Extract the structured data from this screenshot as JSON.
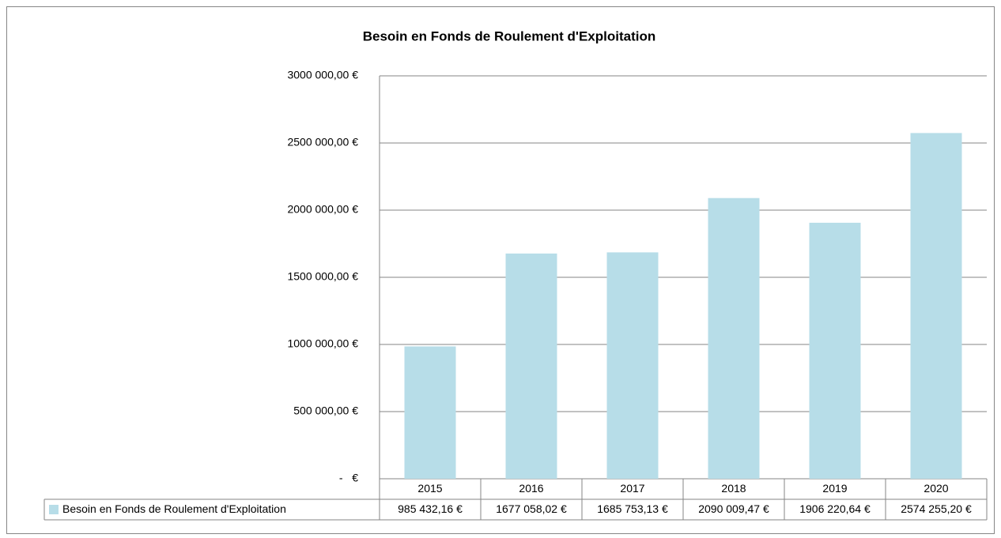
{
  "chart_data": {
    "type": "bar",
    "title": "Besoin en Fonds de Roulement d'Exploitation",
    "categories": [
      "2015",
      "2016",
      "2017",
      "2018",
      "2019",
      "2020"
    ],
    "series": [
      {
        "name": "Besoin en Fonds de Roulement d'Exploitation",
        "color": "#b7dde8",
        "values": [
          985432.16,
          1677058.02,
          1685753.13,
          2090009.47,
          1906220.64,
          2574255.2
        ],
        "value_labels": [
          "985 432,16 €",
          "1677 058,02 €",
          "1685 753,13 €",
          "2090 009,47 €",
          "1906 220,64 €",
          "2574 255,20 €"
        ]
      }
    ],
    "ylim": [
      0,
      3000000
    ],
    "yticks": [
      {
        "value": 0,
        "label": "-   €"
      },
      {
        "value": 500000,
        "label": "500 000,00 €"
      },
      {
        "value": 1000000,
        "label": "1000 000,00 €"
      },
      {
        "value": 1500000,
        "label": "1500 000,00 €"
      },
      {
        "value": 2000000,
        "label": "2000 000,00 €"
      },
      {
        "value": 2500000,
        "label": "2500 000,00 €"
      },
      {
        "value": 3000000,
        "label": "3000 000,00 €"
      }
    ],
    "grid": true
  }
}
